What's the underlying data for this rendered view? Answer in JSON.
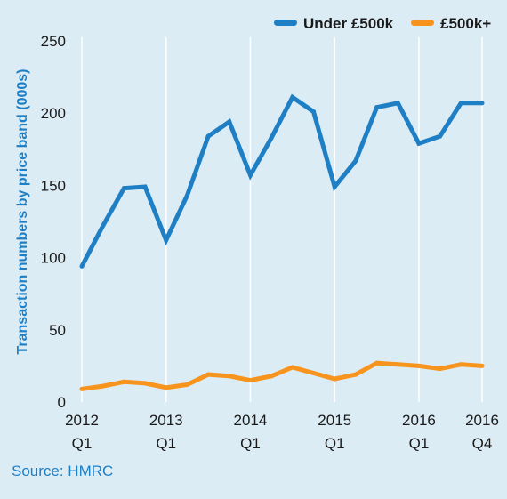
{
  "chart_data": {
    "type": "line",
    "x": [
      "2012 Q1",
      "2012 Q2",
      "2012 Q3",
      "2012 Q4",
      "2013 Q1",
      "2013 Q2",
      "2013 Q3",
      "2013 Q4",
      "2014 Q1",
      "2014 Q2",
      "2014 Q3",
      "2014 Q4",
      "2015 Q1",
      "2015 Q2",
      "2015 Q3",
      "2015 Q4",
      "2016 Q1",
      "2016 Q2",
      "2016 Q3",
      "2016 Q4"
    ],
    "x_tick_labels": [
      {
        "index": 0,
        "year": "2012",
        "quarter": "Q1"
      },
      {
        "index": 4,
        "year": "2013",
        "quarter": "Q1"
      },
      {
        "index": 8,
        "year": "2014",
        "quarter": "Q1"
      },
      {
        "index": 12,
        "year": "2015",
        "quarter": "Q1"
      },
      {
        "index": 16,
        "year": "2016",
        "quarter": "Q1"
      },
      {
        "index": 19,
        "year": "2016",
        "quarter": "Q4"
      }
    ],
    "series": [
      {
        "name": "Under £500k",
        "color": "#1f7fc4",
        "values": [
          94,
          122,
          148,
          149,
          112,
          143,
          184,
          194,
          157,
          183,
          211,
          201,
          149,
          167,
          204,
          207,
          179,
          184,
          207,
          207
        ]
      },
      {
        "name": "£500k+",
        "color": "#f7941d",
        "values": [
          9,
          11,
          14,
          13,
          10,
          12,
          19,
          18,
          15,
          18,
          24,
          20,
          16,
          19,
          27,
          26,
          25,
          23,
          26,
          25
        ]
      }
    ],
    "ylabel": "Transaction numbers by price band (000s)",
    "ylim": [
      0,
      250
    ],
    "yticks": [
      0,
      50,
      100,
      150,
      200,
      250
    ],
    "grid": "vertical",
    "legend_position": "top-right"
  },
  "source": "Source: HMRC"
}
